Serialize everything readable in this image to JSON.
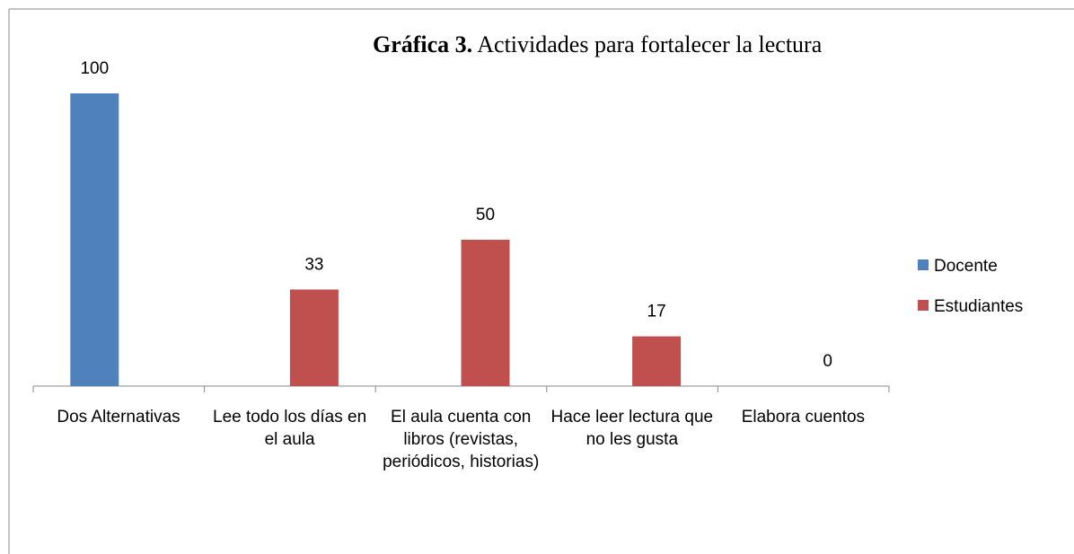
{
  "chart_data": {
    "type": "bar",
    "title": "Gráfica 3. Actividades para fortalecer la lectura",
    "categories": [
      "Dos Alternativas",
      "Lee todo los días en el aula",
      "El aula cuenta con libros (revistas, periódicos, historias)",
      "Hace leer lectura que no les gusta",
      "Elabora cuentos"
    ],
    "series": [
      {
        "name": "Docente",
        "color": "#4f81bd",
        "values": [
          100,
          null,
          null,
          null,
          null
        ]
      },
      {
        "name": "Estudiantes",
        "color": "#c0504d",
        "values": [
          null,
          33,
          50,
          17,
          0
        ]
      }
    ],
    "ylim": [
      0,
      100
    ],
    "legend": "right"
  }
}
